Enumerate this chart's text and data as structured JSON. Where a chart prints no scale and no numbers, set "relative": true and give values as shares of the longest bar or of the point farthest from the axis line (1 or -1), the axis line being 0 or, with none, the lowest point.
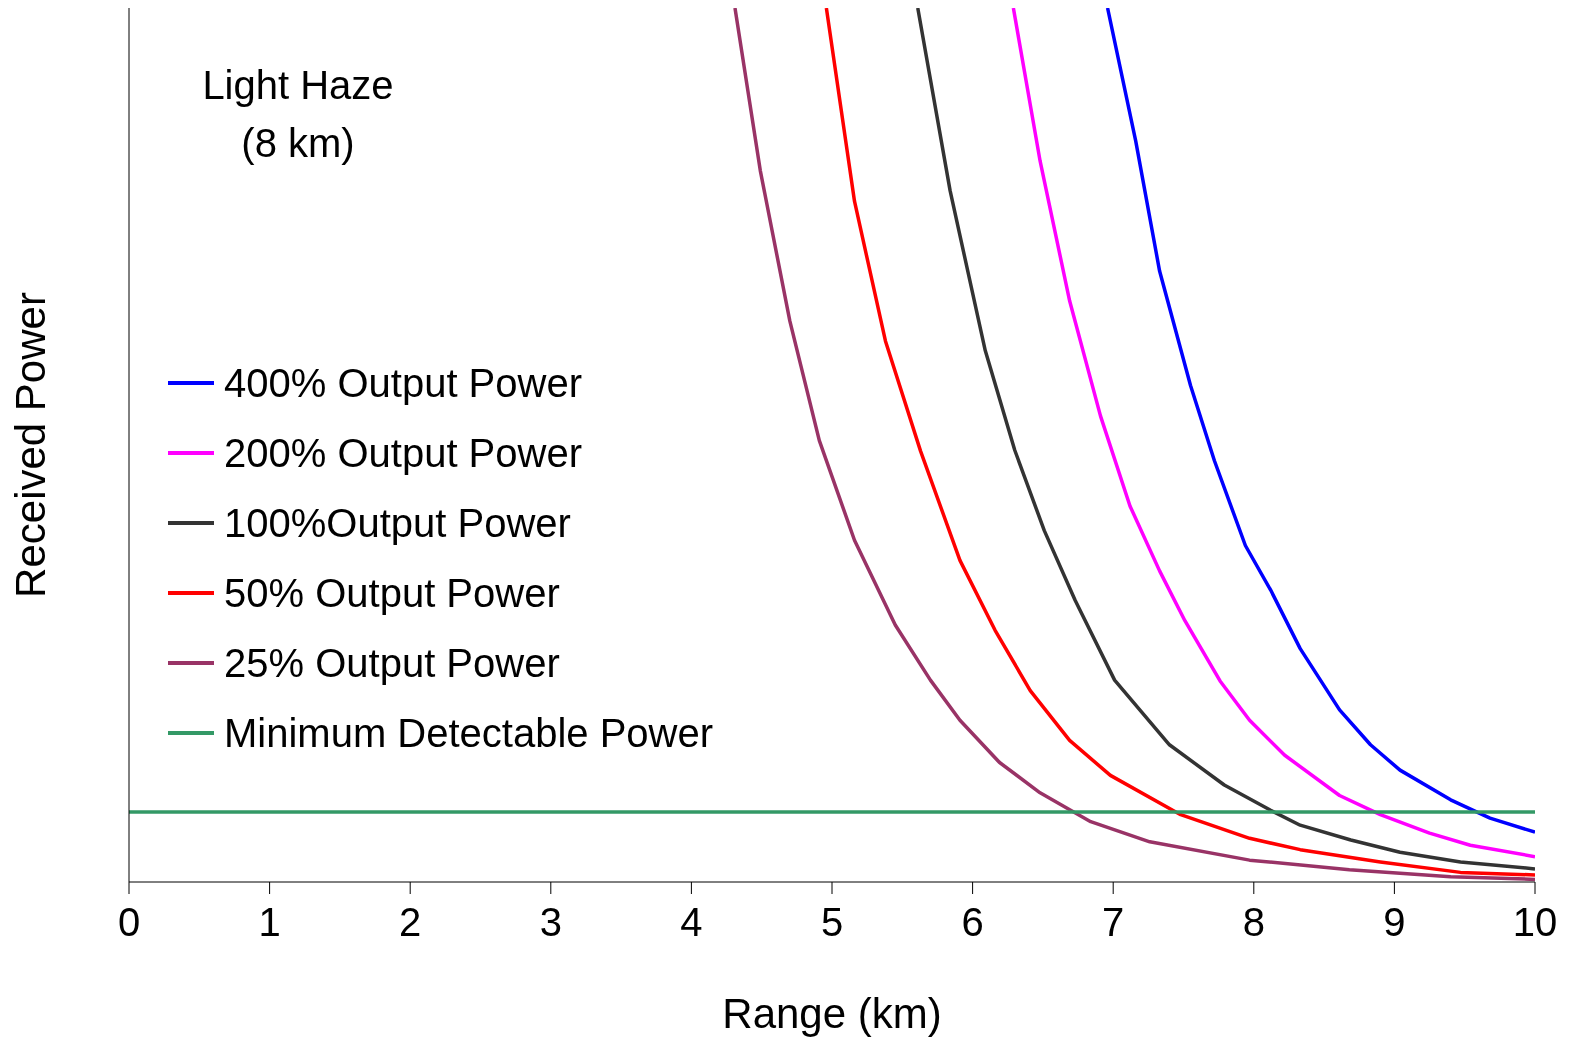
{
  "chart_data": {
    "type": "line",
    "xlabel": "Range (km)",
    "ylabel": "Received Power",
    "relative": true,
    "xlim": [
      0,
      10
    ],
    "xticks": [
      0,
      1,
      2,
      3,
      4,
      5,
      6,
      7,
      8,
      9,
      10
    ],
    "grid": false,
    "legend": "left",
    "marker": "none",
    "line_style": "solid",
    "annotations": [
      "Light Haze (8 km)"
    ],
    "series": [
      {
        "name": "400% Output Power",
        "color": "#0000ff",
        "x": [
          6.96,
          7.16,
          7.33,
          7.55,
          7.72,
          7.94,
          8.12,
          8.33,
          8.61,
          8.83,
          9.04,
          9.4,
          9.68,
          10
        ],
        "values": [
          1,
          0.848,
          0.699,
          0.568,
          0.482,
          0.385,
          0.334,
          0.267,
          0.197,
          0.157,
          0.128,
          0.094,
          0.073,
          0.057
        ]
      },
      {
        "name": "200% Output Power",
        "color": "#ff00ff",
        "x": [
          6.29,
          6.48,
          6.69,
          6.91,
          7.12,
          7.33,
          7.51,
          7.76,
          7.97,
          8.22,
          8.61,
          8.9,
          9.25,
          9.54,
          10
        ],
        "values": [
          1,
          0.825,
          0.665,
          0.533,
          0.43,
          0.356,
          0.299,
          0.23,
          0.185,
          0.145,
          0.099,
          0.077,
          0.056,
          0.042,
          0.029
        ]
      },
      {
        "name": "100%Output Power",
        "color": "#333333",
        "x": [
          5.61,
          5.84,
          6.09,
          6.3,
          6.51,
          6.73,
          7.01,
          7.4,
          7.79,
          8.12,
          8.33,
          8.69,
          9.04,
          9.47,
          10
        ],
        "values": [
          1,
          0.791,
          0.608,
          0.494,
          0.402,
          0.322,
          0.231,
          0.157,
          0.111,
          0.082,
          0.065,
          0.048,
          0.034,
          0.023,
          0.015
        ]
      },
      {
        "name": "50% Output Power",
        "color": "#ff0000",
        "x": [
          4.96,
          5.16,
          5.38,
          5.63,
          5.91,
          6.16,
          6.41,
          6.69,
          6.98,
          7.48,
          7.97,
          8.33,
          8.9,
          9.47,
          10
        ],
        "values": [
          1,
          0.779,
          0.619,
          0.493,
          0.368,
          0.288,
          0.219,
          0.162,
          0.122,
          0.077,
          0.05,
          0.037,
          0.023,
          0.011,
          0.008
        ]
      },
      {
        "name": "25% Output Power",
        "color": "#993366",
        "x": [
          4.31,
          4.49,
          4.7,
          4.91,
          5.16,
          5.45,
          5.7,
          5.91,
          6.19,
          6.48,
          6.84,
          7.26,
          7.97,
          8.68,
          9.4,
          10
        ],
        "values": [
          1,
          0.814,
          0.642,
          0.505,
          0.391,
          0.294,
          0.231,
          0.185,
          0.137,
          0.102,
          0.069,
          0.046,
          0.025,
          0.014,
          0.006,
          0.003
        ]
      },
      {
        "name": "Minimum Detectable Power",
        "color": "#339966",
        "x": [
          0,
          10
        ],
        "values": [
          0.08,
          0.08
        ]
      }
    ]
  }
}
